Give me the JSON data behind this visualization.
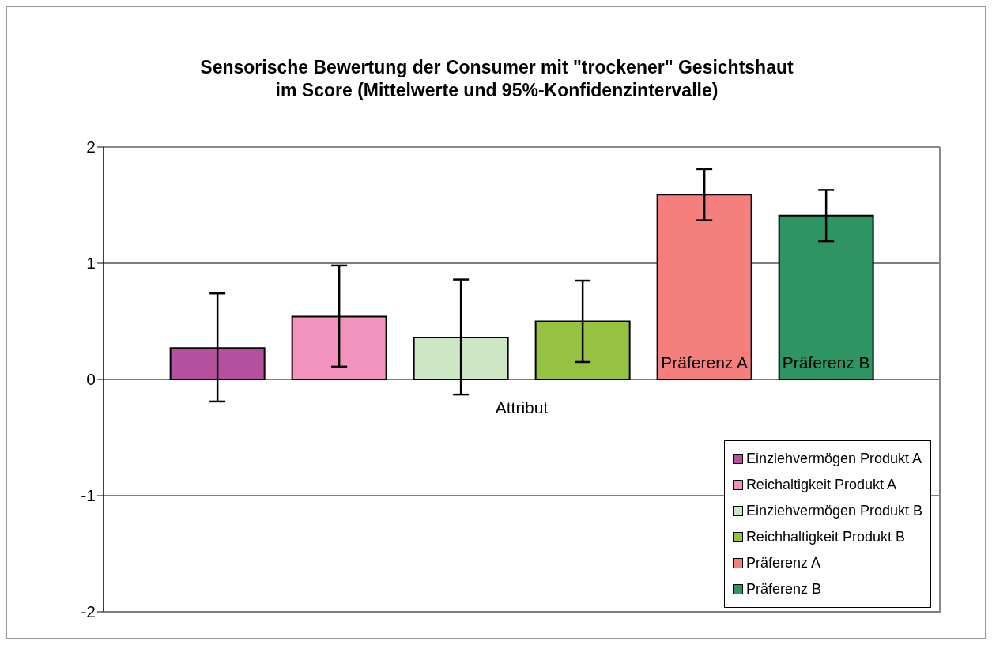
{
  "chart_data": {
    "type": "bar",
    "title": "Sensorische Bewertung der Consumer mit \"trockener\" Gesichtshaut\nim Score (Mittelwerte und 95%-Konfidenzintervalle)",
    "categories": [
      "Attribut"
    ],
    "series": [
      {
        "name": "Einziehvermögen Produkt A",
        "color": "#b5509f",
        "values": [
          0.27
        ],
        "errors": [
          [
            -0.19,
            0.74
          ]
        ]
      },
      {
        "name": "Reichaltigkeit Produkt A",
        "color": "#f293bd",
        "values": [
          0.54
        ],
        "errors": [
          [
            0.11,
            0.98
          ]
        ]
      },
      {
        "name": "Einziehvermögen Produkt B",
        "color": "#cde6c4",
        "values": [
          0.36
        ],
        "errors": [
          [
            -0.13,
            0.86
          ]
        ]
      },
      {
        "name": "Reichhaltigkeit Produkt B",
        "color": "#96c242",
        "values": [
          0.5
        ],
        "errors": [
          [
            0.15,
            0.85
          ]
        ]
      },
      {
        "name": "Präferenz A",
        "color": "#f47f7d",
        "values": [
          1.59
        ],
        "errors": [
          [
            1.37,
            1.81
          ]
        ],
        "value_labels": [
          "Präferenz A"
        ]
      },
      {
        "name": "Präferenz B",
        "color": "#2e9462",
        "values": [
          1.41
        ],
        "errors": [
          [
            1.19,
            1.63
          ]
        ],
        "value_labels": [
          "Präferenz B"
        ]
      }
    ],
    "ylim": [
      -2,
      2
    ],
    "yticks": [
      -2,
      -1,
      0,
      1,
      2
    ],
    "grid": "y",
    "legend": "bottom right"
  }
}
